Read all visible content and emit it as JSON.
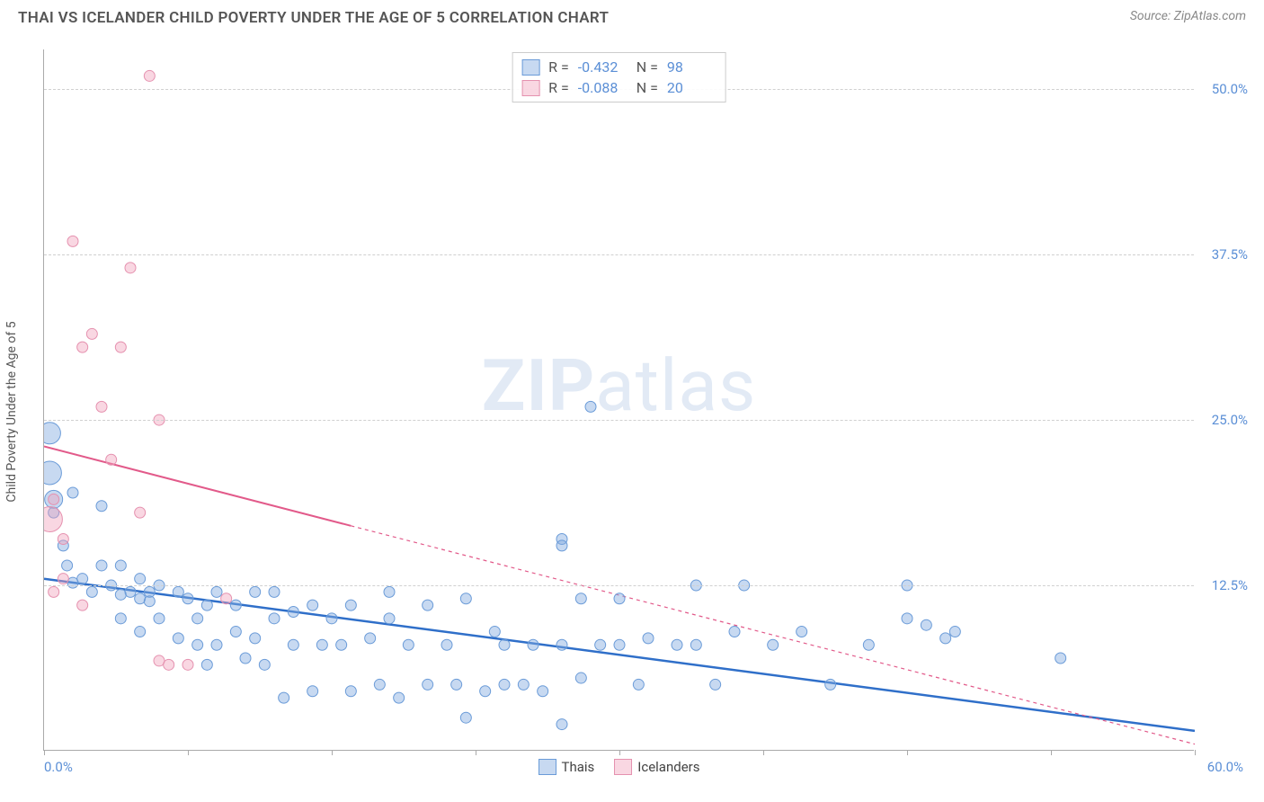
{
  "title": "THAI VS ICELANDER CHILD POVERTY UNDER THE AGE OF 5 CORRELATION CHART",
  "source": "Source: ZipAtlas.com",
  "y_axis_label": "Child Poverty Under the Age of 5",
  "watermark_bold": "ZIP",
  "watermark_light": "atlas",
  "chart": {
    "type": "scatter",
    "xlim": [
      0,
      60
    ],
    "ylim": [
      0,
      53
    ],
    "x_min_label": "0.0%",
    "x_max_label": "60.0%",
    "x_tick_positions": [
      0,
      7.5,
      15,
      22.5,
      30,
      37.5,
      45,
      52.5,
      60
    ],
    "y_gridlines": [
      12.5,
      25.0,
      37.5,
      50.0
    ],
    "y_tick_labels": [
      "12.5%",
      "25.0%",
      "37.5%",
      "50.0%"
    ],
    "background_color": "#ffffff",
    "grid_color": "#d0d0d0",
    "axis_color": "#aaaaaa",
    "tick_label_color": "#5b8fd6",
    "series": [
      {
        "name": "Thais",
        "color_fill": "rgba(130,170,225,0.45)",
        "color_stroke": "#6a9bd8",
        "line_color": "#2f6fc9",
        "line_width": 2.5,
        "line_dash": "none",
        "R": "-0.432",
        "N": "98",
        "trend": {
          "x1": 0,
          "y1": 13.0,
          "x2": 60,
          "y2": 1.5,
          "solid_until_x": 60
        },
        "points": [
          {
            "x": 0.3,
            "y": 24,
            "r": 12
          },
          {
            "x": 0.3,
            "y": 21,
            "r": 13
          },
          {
            "x": 0.5,
            "y": 19,
            "r": 10
          },
          {
            "x": 0.5,
            "y": 18,
            "r": 6
          },
          {
            "x": 1.5,
            "y": 19.5,
            "r": 6
          },
          {
            "x": 1,
            "y": 15.5,
            "r": 6
          },
          {
            "x": 1.2,
            "y": 14,
            "r": 6
          },
          {
            "x": 1.5,
            "y": 12.7,
            "r": 6
          },
          {
            "x": 3,
            "y": 18.5,
            "r": 6
          },
          {
            "x": 3,
            "y": 14,
            "r": 6
          },
          {
            "x": 2,
            "y": 13,
            "r": 6
          },
          {
            "x": 2.5,
            "y": 12,
            "r": 6
          },
          {
            "x": 3.5,
            "y": 12.5,
            "r": 6
          },
          {
            "x": 4,
            "y": 11.8,
            "r": 6
          },
          {
            "x": 4.5,
            "y": 12,
            "r": 6
          },
          {
            "x": 5,
            "y": 13,
            "r": 6
          },
          {
            "x": 4,
            "y": 14,
            "r": 6
          },
          {
            "x": 5,
            "y": 11.5,
            "r": 6
          },
          {
            "x": 5.5,
            "y": 12,
            "r": 6
          },
          {
            "x": 5.5,
            "y": 11.3,
            "r": 6
          },
          {
            "x": 4,
            "y": 10,
            "r": 6
          },
          {
            "x": 5,
            "y": 9,
            "r": 6
          },
          {
            "x": 6,
            "y": 10,
            "r": 6
          },
          {
            "x": 6,
            "y": 12.5,
            "r": 6
          },
          {
            "x": 7,
            "y": 12,
            "r": 6
          },
          {
            "x": 7,
            "y": 8.5,
            "r": 6
          },
          {
            "x": 7.5,
            "y": 11.5,
            "r": 6
          },
          {
            "x": 8,
            "y": 10,
            "r": 6
          },
          {
            "x": 8.5,
            "y": 11,
            "r": 6
          },
          {
            "x": 8,
            "y": 8,
            "r": 6
          },
          {
            "x": 8.5,
            "y": 6.5,
            "r": 6
          },
          {
            "x": 9,
            "y": 12,
            "r": 6
          },
          {
            "x": 9,
            "y": 8,
            "r": 6
          },
          {
            "x": 10,
            "y": 11,
            "r": 6
          },
          {
            "x": 10,
            "y": 9,
            "r": 6
          },
          {
            "x": 10.5,
            "y": 7,
            "r": 6
          },
          {
            "x": 11,
            "y": 12,
            "r": 6
          },
          {
            "x": 11,
            "y": 8.5,
            "r": 6
          },
          {
            "x": 11.5,
            "y": 6.5,
            "r": 6
          },
          {
            "x": 12,
            "y": 10,
            "r": 6
          },
          {
            "x": 12,
            "y": 12,
            "r": 6
          },
          {
            "x": 12.5,
            "y": 4,
            "r": 6
          },
          {
            "x": 13,
            "y": 10.5,
            "r": 6
          },
          {
            "x": 13,
            "y": 8,
            "r": 6
          },
          {
            "x": 14,
            "y": 11,
            "r": 6
          },
          {
            "x": 14.5,
            "y": 8,
            "r": 6
          },
          {
            "x": 14,
            "y": 4.5,
            "r": 6
          },
          {
            "x": 15,
            "y": 10,
            "r": 6
          },
          {
            "x": 15.5,
            "y": 8,
            "r": 6
          },
          {
            "x": 16,
            "y": 11,
            "r": 6
          },
          {
            "x": 16,
            "y": 4.5,
            "r": 6
          },
          {
            "x": 17,
            "y": 8.5,
            "r": 6
          },
          {
            "x": 17.5,
            "y": 5,
            "r": 6
          },
          {
            "x": 18,
            "y": 10,
            "r": 6
          },
          {
            "x": 18,
            "y": 12,
            "r": 6
          },
          {
            "x": 18.5,
            "y": 4,
            "r": 6
          },
          {
            "x": 19,
            "y": 8,
            "r": 6
          },
          {
            "x": 20,
            "y": 11,
            "r": 6
          },
          {
            "x": 20,
            "y": 5,
            "r": 6
          },
          {
            "x": 21,
            "y": 8,
            "r": 6
          },
          {
            "x": 21.5,
            "y": 5,
            "r": 6
          },
          {
            "x": 22,
            "y": 11.5,
            "r": 6
          },
          {
            "x": 22,
            "y": 2.5,
            "r": 6
          },
          {
            "x": 23,
            "y": 4.5,
            "r": 6
          },
          {
            "x": 23.5,
            "y": 9,
            "r": 6
          },
          {
            "x": 24,
            "y": 5,
            "r": 6
          },
          {
            "x": 24,
            "y": 8,
            "r": 6
          },
          {
            "x": 25,
            "y": 5,
            "r": 6
          },
          {
            "x": 25.5,
            "y": 8,
            "r": 6
          },
          {
            "x": 26,
            "y": 4.5,
            "r": 6
          },
          {
            "x": 27,
            "y": 2,
            "r": 6
          },
          {
            "x": 27,
            "y": 8,
            "r": 6
          },
          {
            "x": 27,
            "y": 16,
            "r": 6
          },
          {
            "x": 27,
            "y": 15.5,
            "r": 6
          },
          {
            "x": 28,
            "y": 5.5,
            "r": 6
          },
          {
            "x": 28.5,
            "y": 26,
            "r": 6
          },
          {
            "x": 29,
            "y": 8,
            "r": 6
          },
          {
            "x": 30,
            "y": 11.5,
            "r": 6
          },
          {
            "x": 30,
            "y": 8,
            "r": 6
          },
          {
            "x": 31,
            "y": 5,
            "r": 6
          },
          {
            "x": 31.5,
            "y": 8.5,
            "r": 6
          },
          {
            "x": 33,
            "y": 8,
            "r": 6
          },
          {
            "x": 34,
            "y": 12.5,
            "r": 6
          },
          {
            "x": 34,
            "y": 8,
            "r": 6
          },
          {
            "x": 35,
            "y": 5,
            "r": 6
          },
          {
            "x": 36,
            "y": 9,
            "r": 6
          },
          {
            "x": 36.5,
            "y": 12.5,
            "r": 6
          },
          {
            "x": 38,
            "y": 8,
            "r": 6
          },
          {
            "x": 39.5,
            "y": 9,
            "r": 6
          },
          {
            "x": 41,
            "y": 5,
            "r": 6
          },
          {
            "x": 43,
            "y": 8,
            "r": 6
          },
          {
            "x": 45,
            "y": 10,
            "r": 6
          },
          {
            "x": 45,
            "y": 12.5,
            "r": 6
          },
          {
            "x": 46,
            "y": 9.5,
            "r": 6
          },
          {
            "x": 47,
            "y": 8.5,
            "r": 6
          },
          {
            "x": 47.5,
            "y": 9,
            "r": 6
          },
          {
            "x": 53,
            "y": 7,
            "r": 6
          },
          {
            "x": 28,
            "y": 11.5,
            "r": 6
          }
        ]
      },
      {
        "name": "Icelanders",
        "color_fill": "rgba(240,160,185,0.42)",
        "color_stroke": "#e591af",
        "line_color": "#e25a8a",
        "line_width": 2,
        "line_dash": "4,4",
        "R": "-0.088",
        "N": "20",
        "trend": {
          "x1": 0,
          "y1": 23,
          "x2": 60,
          "y2": 0.5,
          "solid_until_x": 16
        },
        "points": [
          {
            "x": 0.3,
            "y": 17.5,
            "r": 14
          },
          {
            "x": 0.5,
            "y": 19,
            "r": 6
          },
          {
            "x": 1,
            "y": 13,
            "r": 6
          },
          {
            "x": 0.5,
            "y": 12,
            "r": 6
          },
          {
            "x": 1,
            "y": 16,
            "r": 6
          },
          {
            "x": 1.5,
            "y": 38.5,
            "r": 6
          },
          {
            "x": 2,
            "y": 30.5,
            "r": 6
          },
          {
            "x": 2.5,
            "y": 31.5,
            "r": 6
          },
          {
            "x": 2,
            "y": 11,
            "r": 6
          },
          {
            "x": 3,
            "y": 26,
            "r": 6
          },
          {
            "x": 3.5,
            "y": 22,
            "r": 6
          },
          {
            "x": 4,
            "y": 30.5,
            "r": 6
          },
          {
            "x": 4.5,
            "y": 36.5,
            "r": 6
          },
          {
            "x": 5.5,
            "y": 51,
            "r": 6
          },
          {
            "x": 5,
            "y": 18,
            "r": 6
          },
          {
            "x": 6,
            "y": 25,
            "r": 6
          },
          {
            "x": 6,
            "y": 6.8,
            "r": 6
          },
          {
            "x": 7.5,
            "y": 6.5,
            "r": 6
          },
          {
            "x": 9.5,
            "y": 11.5,
            "r": 6
          },
          {
            "x": 6.5,
            "y": 6.5,
            "r": 6
          }
        ]
      }
    ]
  },
  "legend_labels": {
    "series1": "Thais",
    "series2": "Icelanders"
  },
  "stats_labels": {
    "R": "R =",
    "N": "N ="
  }
}
